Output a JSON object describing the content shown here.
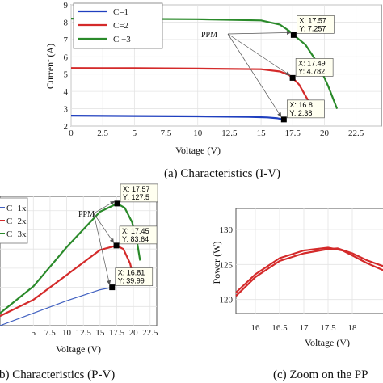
{
  "chart_data": [
    {
      "id": "iv",
      "type": "line",
      "caption": "(a) Characteristics (I-V)",
      "xlabel": "Voltage (V)",
      "ylabel": "Current (A)",
      "xlim": [
        0,
        24.5
      ],
      "ylim": [
        2,
        9
      ],
      "xticks": [
        "0",
        "2.5",
        "5",
        "7.5",
        "10",
        "12.5",
        "15",
        "17.5",
        "20",
        "22.5"
      ],
      "yticks": [
        "2",
        "3",
        "4",
        "5",
        "6",
        "7",
        "8",
        "9"
      ],
      "grid": true,
      "legend_position": "top-left",
      "annotation": "PPM",
      "series": [
        {
          "name": "C=1",
          "color": "#1f3fbf",
          "x": [
            0,
            5,
            10,
            14,
            15.5,
            16.3,
            16.8
          ],
          "y": [
            2.6,
            2.58,
            2.56,
            2.53,
            2.5,
            2.45,
            2.38
          ]
        },
        {
          "name": "C=2",
          "color": "#d42a2a",
          "x": [
            0,
            5,
            10,
            15,
            16.5,
            17.2,
            17.49,
            18,
            18.7,
            19.2
          ],
          "y": [
            5.35,
            5.34,
            5.32,
            5.28,
            5.15,
            4.95,
            4.782,
            4.4,
            3.5,
            2.7
          ]
        },
        {
          "name": "C −3",
          "color": "#2a8a2a",
          "x": [
            0,
            5,
            10,
            15,
            16.5,
            17.2,
            17.57,
            18.5,
            19.5,
            20.3,
            21
          ],
          "y": [
            8.2,
            8.19,
            8.17,
            8.1,
            7.85,
            7.5,
            7.257,
            6.7,
            5.6,
            4.3,
            3
          ]
        }
      ],
      "datatips": [
        {
          "x": 17.57,
          "y": 7.257,
          "xtext": "X: 17.57",
          "ytext": "Y: 7.257"
        },
        {
          "x": 17.49,
          "y": 4.782,
          "xtext": "X: 17.49",
          "ytext": "Y: 4.782"
        },
        {
          "x": 16.8,
          "y": 2.38,
          "xtext": "X: 16.8",
          "ytext": "Y: 2.38"
        }
      ]
    },
    {
      "id": "pv",
      "type": "line",
      "caption": "(b)  Characteristics (P-V)",
      "xlabel": "Voltage (V)",
      "ylabel": "",
      "xlim": [
        0,
        23.5
      ],
      "ylim": [
        0,
        135
      ],
      "xticks": [
        "5",
        "7.5",
        "10",
        "12.5",
        "15",
        "17.5",
        "20",
        "22.5"
      ],
      "grid": true,
      "legend_position": "top-left",
      "annotation": "PPM",
      "series": [
        {
          "name": "C−1x",
          "color": "#4060c0",
          "x": [
            0,
            5,
            10,
            15,
            16.81
          ],
          "y": [
            0,
            13,
            26,
            37.5,
            39.99
          ]
        },
        {
          "name": "C−2x",
          "color": "#d42a2a",
          "x": [
            0,
            5,
            10,
            15,
            17.45,
            18.5,
            19.5,
            20.2
          ],
          "y": [
            10,
            27,
            53,
            79,
            83.64,
            80,
            65,
            45
          ]
        },
        {
          "name": "C−3x",
          "color": "#2a8a2a",
          "x": [
            0,
            5,
            10,
            15,
            17.57,
            18.7,
            19.8,
            20.6,
            21
          ],
          "y": [
            13,
            41,
            82,
            119,
            127.5,
            123,
            108,
            85,
            68
          ]
        }
      ],
      "datatips": [
        {
          "x": 17.57,
          "y": 127.5,
          "xtext": "X: 17.57",
          "ytext": "Y: 127.5"
        },
        {
          "x": 17.45,
          "y": 83.64,
          "xtext": "X: 17.45",
          "ytext": "Y: 83.64"
        },
        {
          "x": 16.81,
          "y": 39.99,
          "xtext": "X: 16.81",
          "ytext": "Y: 39.99"
        }
      ]
    },
    {
      "id": "zoom",
      "type": "line",
      "caption": "(c)  Zoom on the PP",
      "xlabel": "Voltage (V)",
      "ylabel": "Power (W)",
      "xlim": [
        15.6,
        18.7
      ],
      "ylim": [
        118,
        133
      ],
      "xticks": [
        "16",
        "16.5",
        "17",
        "17.5",
        "18"
      ],
      "yticks": [
        "120",
        "125",
        "130"
      ],
      "grid": true,
      "series": [
        {
          "name": "",
          "color": "#d42a2a",
          "x": [
            15.6,
            16.0,
            16.5,
            17.0,
            17.5,
            17.8,
            18.0,
            18.3,
            18.7
          ],
          "y": [
            121.0,
            123.6,
            125.9,
            127.0,
            127.4,
            127.0,
            126.3,
            125.2,
            124.0
          ]
        },
        {
          "name": "",
          "color": "#d42a2a",
          "x": [
            15.6,
            16.0,
            16.5,
            17.0,
            17.5,
            17.7,
            18.0,
            18.3,
            18.7
          ],
          "y": [
            120.5,
            123.2,
            125.5,
            126.6,
            127.2,
            127.3,
            126.6,
            125.6,
            124.6
          ]
        }
      ]
    }
  ]
}
